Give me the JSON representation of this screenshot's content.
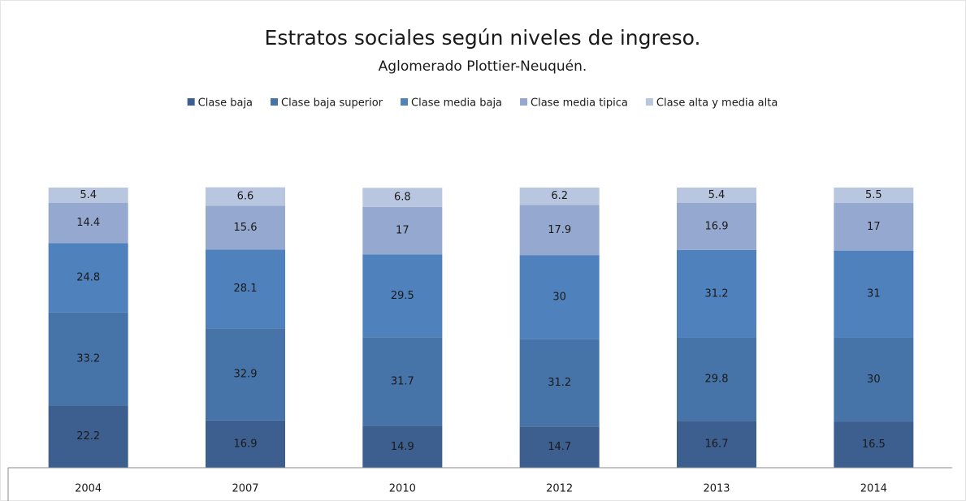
{
  "chart_data": {
    "type": "stacked_bar",
    "title": "Estratos sociales según niveles de ingreso.",
    "subtitle": "Aglomerado Plottier-Neuquén.",
    "categories": [
      "2004",
      "2007",
      "2010",
      "2012",
      "2013",
      "2014"
    ],
    "series": [
      {
        "name": "Clase baja",
        "color": "#3d5f8f",
        "values": [
          22.2,
          16.9,
          14.9,
          14.7,
          16.7,
          16.5
        ]
      },
      {
        "name": "Clase baja superior",
        "color": "#4673a8",
        "values": [
          33.2,
          32.9,
          31.7,
          31.2,
          29.8,
          30
        ]
      },
      {
        "name": "Clase media baja",
        "color": "#4f81bd",
        "values": [
          24.8,
          28.1,
          29.5,
          30,
          31.2,
          31
        ]
      },
      {
        "name": "Clase media tipica",
        "color": "#95a9d0",
        "values": [
          14.4,
          15.6,
          17,
          17.9,
          16.9,
          17
        ]
      },
      {
        "name": "Clase alta y media alta",
        "color": "#b9c6e0",
        "values": [
          5.4,
          6.6,
          6.8,
          6.2,
          5.4,
          5.5
        ]
      }
    ],
    "ylim": [
      0,
      100
    ],
    "legend": "top"
  }
}
